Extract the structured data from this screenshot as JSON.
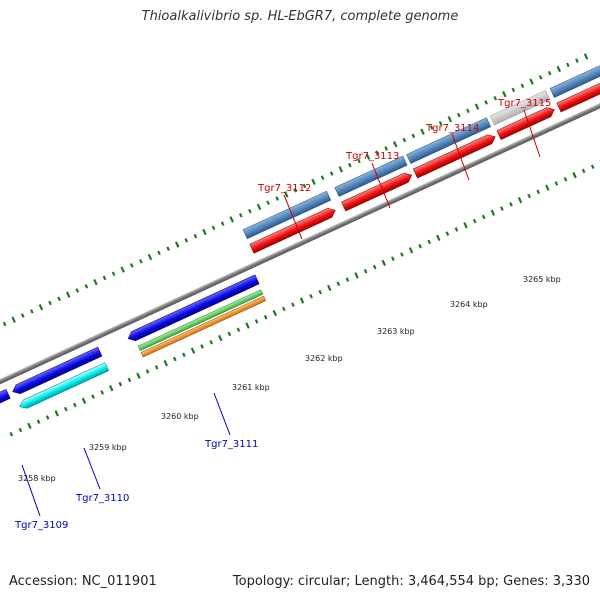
{
  "header": {
    "title": "Thioalkalivibrio sp. HL-EbGR7, complete genome"
  },
  "footer": {
    "accession": "Accession: NC_011901",
    "summary": "Topology: circular; Length: 3,464,554 bp; Genes: 3,330"
  },
  "scale": {
    "labels": [
      "3258 kbp",
      "3259 kbp",
      "3260 kbp",
      "3261 kbp",
      "3262 kbp",
      "3263 kbp",
      "3264 kbp",
      "3265 kbp"
    ]
  },
  "genes": {
    "forward_labels": [
      "Tgr7_3112",
      "Tgr7_3113",
      "Tgr7_3114",
      "Tgr7_3115"
    ],
    "reverse_labels": [
      "Tgr7_3109",
      "Tgr7_3110",
      "Tgr7_3111"
    ]
  },
  "colors": {
    "forward_label": "#cc0000",
    "reverse_label": "#0000bb",
    "cds_forward": "#ee1111",
    "cds_reverse": "#0a0ae0",
    "gene_forward": "#4f84bb",
    "gene_reverse": "#00eaea",
    "tick": "#1e7a1e",
    "backbone": "#888888",
    "rRNA": "#44cc44",
    "other": "#ee8811",
    "hypothetical": "#c4c4c4"
  }
}
